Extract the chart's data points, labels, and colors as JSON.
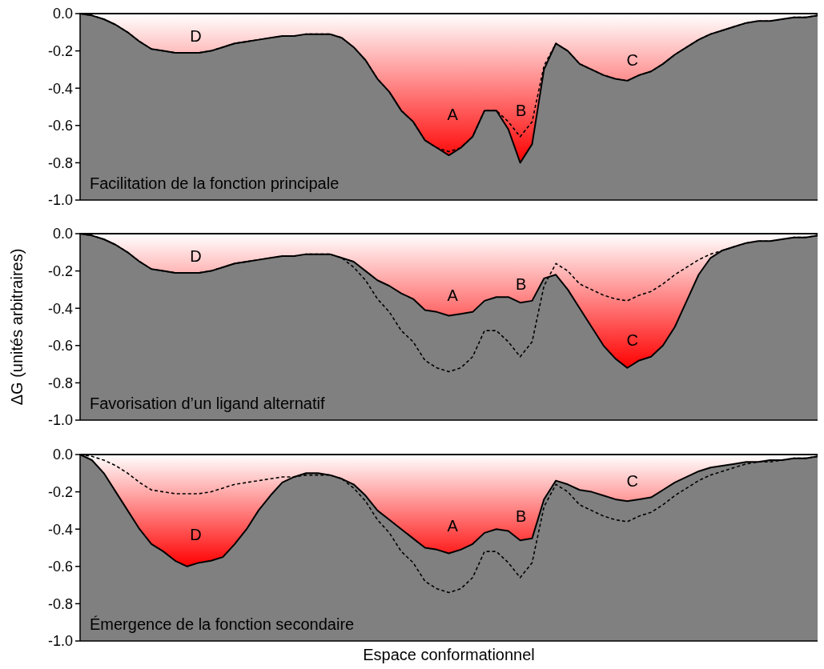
{
  "chart_data": [
    {
      "type": "area",
      "title": "Facilitation de la fonction principale",
      "categories": [
        null,
        null,
        null,
        null,
        null,
        null,
        null,
        null,
        null,
        null,
        null,
        null,
        null,
        null,
        null,
        null,
        null,
        null,
        null,
        null,
        null,
        null,
        null,
        null,
        null,
        null,
        null,
        null,
        null,
        null,
        null,
        null,
        null,
        null,
        null,
        null,
        null,
        null,
        null,
        null,
        null,
        null,
        null,
        null,
        null,
        null,
        null,
        null,
        null,
        null,
        null,
        null,
        null,
        null,
        null,
        null,
        null,
        null,
        null,
        null,
        null,
        null,
        null
      ],
      "ylim": [
        -1,
        0
      ],
      "yticks": [
        {
          "value": 0,
          "label": "0.0"
        },
        {
          "value": -0.2,
          "label": "-0.2"
        },
        {
          "value": -0.4,
          "label": "-0.4"
        },
        {
          "value": -0.6,
          "label": "-0.6"
        },
        {
          "value": -0.8,
          "label": "-0.8"
        },
        {
          "value": -1,
          "label": "-1.0"
        }
      ],
      "tick_labels": "y",
      "grid": false,
      "series": [
        {
          "type": "area",
          "color": "#000000",
          "values": [
            0,
            -0.01,
            -0.03,
            -0.06,
            -0.1,
            -0.15,
            -0.19,
            -0.2,
            -0.21,
            -0.21,
            -0.21,
            -0.2,
            -0.18,
            -0.16,
            -0.15,
            -0.14,
            -0.13,
            -0.12,
            -0.12,
            -0.11,
            -0.11,
            -0.11,
            -0.13,
            -0.18,
            -0.25,
            -0.35,
            -0.42,
            -0.52,
            -0.58,
            -0.68,
            -0.72,
            -0.76,
            -0.72,
            -0.66,
            -0.52,
            -0.52,
            -0.62,
            -0.8,
            -0.7,
            -0.3,
            -0.16,
            -0.2,
            -0.27,
            -0.3,
            -0.33,
            -0.35,
            -0.36,
            -0.33,
            -0.31,
            -0.27,
            -0.22,
            -0.18,
            -0.14,
            -0.11,
            -0.09,
            -0.07,
            -0.05,
            -0.04,
            -0.04,
            -0.03,
            -0.02,
            -0.02,
            -0.01
          ]
        },
        {
          "type": "line",
          "color": "#000000",
          "line_style": "dashed",
          "values": [
            0,
            -0.01,
            -0.03,
            -0.06,
            -0.1,
            -0.15,
            -0.19,
            -0.2,
            -0.21,
            -0.21,
            -0.21,
            -0.2,
            -0.18,
            -0.16,
            -0.15,
            -0.14,
            -0.13,
            -0.12,
            -0.12,
            -0.11,
            -0.11,
            -0.11,
            -0.13,
            -0.18,
            -0.25,
            -0.35,
            -0.42,
            -0.52,
            -0.58,
            -0.68,
            -0.72,
            -0.74,
            -0.72,
            -0.66,
            -0.52,
            -0.52,
            -0.58,
            -0.66,
            -0.58,
            -0.28,
            -0.16,
            -0.2,
            -0.27,
            -0.3,
            -0.33,
            -0.35,
            -0.36,
            -0.33,
            -0.31,
            -0.27,
            -0.22,
            -0.18,
            -0.14,
            -0.11,
            -0.09,
            -0.07,
            -0.05,
            -0.04,
            -0.04,
            -0.03,
            -0.02,
            -0.02,
            -0.01
          ]
        }
      ],
      "annotations": [
        "D",
        "A",
        "B",
        "C"
      ]
    },
    {
      "type": "area",
      "title": "Favorisation d’un ligand alternatif",
      "ylabel": "ΔG (unités arbitraires)",
      "categories": [
        null,
        null,
        null,
        null,
        null,
        null,
        null,
        null,
        null,
        null,
        null,
        null,
        null,
        null,
        null,
        null,
        null,
        null,
        null,
        null,
        null,
        null,
        null,
        null,
        null,
        null,
        null,
        null,
        null,
        null,
        null,
        null,
        null,
        null,
        null,
        null,
        null,
        null,
        null,
        null,
        null,
        null,
        null,
        null,
        null,
        null,
        null,
        null,
        null,
        null,
        null,
        null,
        null,
        null,
        null,
        null,
        null,
        null,
        null,
        null,
        null,
        null,
        null
      ],
      "ylim": [
        -1,
        0
      ],
      "yticks": [
        {
          "value": 0,
          "label": "0.0"
        },
        {
          "value": -0.2,
          "label": "-0.2"
        },
        {
          "value": -0.4,
          "label": "-0.4"
        },
        {
          "value": -0.6,
          "label": "-0.6"
        },
        {
          "value": -0.8,
          "label": "-0.8"
        },
        {
          "value": -1,
          "label": "-1.0"
        }
      ],
      "tick_labels": "y",
      "grid": false,
      "series": [
        {
          "type": "area",
          "color": "#000000",
          "values": [
            0,
            -0.01,
            -0.03,
            -0.06,
            -0.1,
            -0.15,
            -0.19,
            -0.2,
            -0.21,
            -0.21,
            -0.21,
            -0.2,
            -0.18,
            -0.16,
            -0.15,
            -0.14,
            -0.13,
            -0.12,
            -0.12,
            -0.11,
            -0.11,
            -0.11,
            -0.13,
            -0.15,
            -0.2,
            -0.25,
            -0.28,
            -0.32,
            -0.35,
            -0.41,
            -0.42,
            -0.44,
            -0.43,
            -0.42,
            -0.36,
            -0.34,
            -0.34,
            -0.37,
            -0.36,
            -0.24,
            -0.22,
            -0.3,
            -0.4,
            -0.5,
            -0.6,
            -0.67,
            -0.72,
            -0.68,
            -0.66,
            -0.6,
            -0.5,
            -0.36,
            -0.22,
            -0.13,
            -0.09,
            -0.07,
            -0.05,
            -0.04,
            -0.04,
            -0.03,
            -0.02,
            -0.02,
            -0.01
          ]
        },
        {
          "type": "line",
          "color": "#000000",
          "line_style": "dashed",
          "values": [
            0,
            -0.01,
            -0.03,
            -0.06,
            -0.1,
            -0.15,
            -0.19,
            -0.2,
            -0.21,
            -0.21,
            -0.21,
            -0.2,
            -0.18,
            -0.16,
            -0.15,
            -0.14,
            -0.13,
            -0.12,
            -0.12,
            -0.11,
            -0.11,
            -0.11,
            -0.13,
            -0.18,
            -0.25,
            -0.35,
            -0.42,
            -0.52,
            -0.58,
            -0.68,
            -0.72,
            -0.74,
            -0.72,
            -0.66,
            -0.52,
            -0.52,
            -0.58,
            -0.66,
            -0.58,
            -0.28,
            -0.16,
            -0.2,
            -0.27,
            -0.3,
            -0.33,
            -0.35,
            -0.36,
            -0.33,
            -0.31,
            -0.27,
            -0.22,
            -0.18,
            -0.14,
            -0.11,
            -0.09,
            -0.07,
            -0.05,
            -0.04,
            -0.04,
            -0.03,
            -0.02,
            -0.02,
            -0.01
          ]
        }
      ],
      "annotations": [
        "D",
        "A",
        "B",
        "C"
      ]
    },
    {
      "type": "area",
      "title": "Émergence de la fonction secondaire",
      "xlabel": "Espace conformationnel",
      "categories": [
        null,
        null,
        null,
        null,
        null,
        null,
        null,
        null,
        null,
        null,
        null,
        null,
        null,
        null,
        null,
        null,
        null,
        null,
        null,
        null,
        null,
        null,
        null,
        null,
        null,
        null,
        null,
        null,
        null,
        null,
        null,
        null,
        null,
        null,
        null,
        null,
        null,
        null,
        null,
        null,
        null,
        null,
        null,
        null,
        null,
        null,
        null,
        null,
        null,
        null,
        null,
        null,
        null,
        null,
        null,
        null,
        null,
        null,
        null,
        null,
        null,
        null,
        null
      ],
      "ylim": [
        -1,
        0
      ],
      "yticks": [
        {
          "value": 0,
          "label": "0.0"
        },
        {
          "value": -0.2,
          "label": "-0.2"
        },
        {
          "value": -0.4,
          "label": "-0.4"
        },
        {
          "value": -0.6,
          "label": "-0.6"
        },
        {
          "value": -0.8,
          "label": "-0.8"
        },
        {
          "value": -1,
          "label": "-1.0"
        }
      ],
      "tick_labels": "y",
      "grid": false,
      "series": [
        {
          "type": "area",
          "color": "#000000",
          "values": [
            0,
            -0.03,
            -0.1,
            -0.2,
            -0.3,
            -0.4,
            -0.48,
            -0.52,
            -0.57,
            -0.6,
            -0.58,
            -0.57,
            -0.55,
            -0.48,
            -0.4,
            -0.3,
            -0.22,
            -0.15,
            -0.12,
            -0.1,
            -0.1,
            -0.11,
            -0.13,
            -0.16,
            -0.22,
            -0.3,
            -0.35,
            -0.4,
            -0.45,
            -0.5,
            -0.51,
            -0.53,
            -0.51,
            -0.48,
            -0.42,
            -0.4,
            -0.41,
            -0.46,
            -0.45,
            -0.24,
            -0.14,
            -0.16,
            -0.19,
            -0.2,
            -0.22,
            -0.24,
            -0.25,
            -0.24,
            -0.23,
            -0.19,
            -0.15,
            -0.12,
            -0.09,
            -0.07,
            -0.06,
            -0.05,
            -0.04,
            -0.04,
            -0.03,
            -0.03,
            -0.02,
            -0.02,
            -0.01
          ]
        },
        {
          "type": "line",
          "color": "#000000",
          "line_style": "dashed",
          "values": [
            0,
            -0.01,
            -0.03,
            -0.06,
            -0.1,
            -0.15,
            -0.19,
            -0.2,
            -0.21,
            -0.21,
            -0.21,
            -0.2,
            -0.18,
            -0.16,
            -0.15,
            -0.14,
            -0.13,
            -0.12,
            -0.12,
            -0.11,
            -0.11,
            -0.11,
            -0.13,
            -0.18,
            -0.25,
            -0.35,
            -0.42,
            -0.52,
            -0.58,
            -0.68,
            -0.72,
            -0.74,
            -0.72,
            -0.66,
            -0.52,
            -0.52,
            -0.58,
            -0.66,
            -0.58,
            -0.28,
            -0.16,
            -0.2,
            -0.27,
            -0.3,
            -0.33,
            -0.35,
            -0.36,
            -0.33,
            -0.31,
            -0.27,
            -0.22,
            -0.18,
            -0.14,
            -0.11,
            -0.09,
            -0.07,
            -0.05,
            -0.04,
            -0.04,
            -0.03,
            -0.02,
            -0.02,
            -0.01
          ]
        }
      ],
      "annotations": [
        "D",
        "A",
        "B",
        "C"
      ]
    }
  ]
}
